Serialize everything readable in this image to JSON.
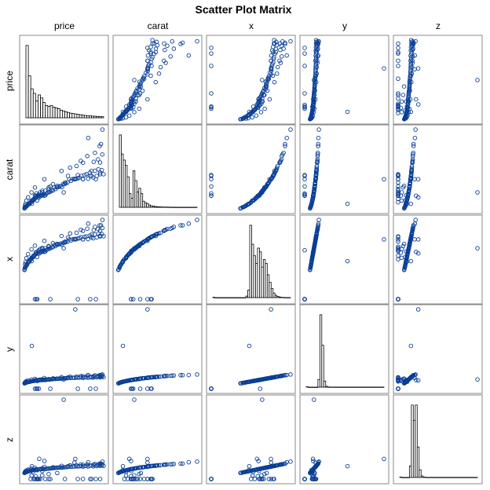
{
  "chart_data": {
    "type": "scatter",
    "title": "Scatter Plot Matrix",
    "variables": [
      "price",
      "carat",
      "x",
      "y",
      "z"
    ],
    "ranges": {
      "price": [
        326,
        18823
      ],
      "carat": [
        0.2,
        5.01
      ],
      "x": [
        0,
        10.74
      ],
      "y": [
        0,
        58.9
      ],
      "z": [
        0,
        31.8
      ]
    },
    "histograms": {
      "price": [
        0.95,
        0.55,
        0.38,
        0.32,
        0.22,
        0.3,
        0.26,
        0.2,
        0.16,
        0.15,
        0.16,
        0.14,
        0.13,
        0.12,
        0.1,
        0.09,
        0.08,
        0.07,
        0.06,
        0.055,
        0.05,
        0.045,
        0.04,
        0.035,
        0.03,
        0.028,
        0.025,
        0.022,
        0.02,
        0.018,
        0.016,
        0.014
      ],
      "carat": [
        0.95,
        0.7,
        0.62,
        0.55,
        0.4,
        0.18,
        0.12,
        0.48,
        0.35,
        0.2,
        0.25,
        0.18,
        0.08,
        0.06,
        0.05,
        0.03,
        0.02,
        0.015,
        0.01,
        0.008,
        0.006,
        0.005,
        0.004,
        0.003,
        0.003,
        0.002,
        0.002,
        0.002,
        0.001,
        0.001,
        0.001,
        0.001,
        0.001,
        0.001,
        0.001,
        0.001,
        0.001,
        0.001,
        0.001,
        0.001
      ],
      "x": [
        0.005,
        0,
        0,
        0,
        0,
        0,
        0,
        0,
        0,
        0,
        0,
        0,
        0,
        0,
        0,
        0,
        0,
        0.02,
        0.1,
        0.95,
        0.7,
        0.55,
        0.45,
        0.65,
        0.6,
        0.4,
        0.5,
        0.45,
        0.3,
        0.2,
        0.12,
        0.06,
        0.03,
        0.015,
        0.008,
        0.004,
        0.002,
        0.001,
        0.001,
        0.001
      ],
      "y": [
        0.005,
        0,
        0,
        0,
        0,
        0,
        0.1,
        0.95,
        0.55,
        0.08,
        0.01,
        0.002,
        0.001,
        0.001,
        0.001,
        0.001,
        0.001,
        0.001,
        0.001,
        0.001,
        0.001,
        0.001,
        0.001,
        0.001,
        0.001,
        0.001,
        0.001,
        0.001,
        0.001,
        0.001,
        0.001,
        0.001,
        0.001,
        0.001,
        0.001,
        0.001,
        0.001,
        0.001,
        0.001,
        0.001
      ],
      "z": [
        0.005,
        0,
        0,
        0,
        0,
        0.15,
        0.95,
        0.75,
        0.95,
        0.4,
        0.1,
        0.02,
        0.005,
        0.002,
        0.001,
        0.001,
        0.001,
        0.001,
        0.001,
        0.001,
        0.001,
        0.001,
        0.001,
        0.001,
        0.001,
        0.001,
        0.001,
        0.001,
        0.001,
        0.001,
        0.001,
        0.001,
        0.001,
        0.001,
        0.001,
        0.001,
        0.001,
        0.001,
        0.001,
        0.001
      ]
    },
    "points": [
      [
        357,
        0.23,
        3.95,
        3.98,
        2.43
      ],
      [
        400,
        0.25,
        4.05,
        4.07,
        2.5
      ],
      [
        450,
        0.3,
        4.25,
        4.28,
        2.63
      ],
      [
        520,
        0.3,
        4.3,
        4.32,
        2.66
      ],
      [
        600,
        0.31,
        4.35,
        4.37,
        2.69
      ],
      [
        700,
        0.33,
        4.45,
        4.47,
        2.75
      ],
      [
        800,
        0.35,
        4.55,
        4.58,
        2.81
      ],
      [
        900,
        0.38,
        4.65,
        4.68,
        2.88
      ],
      [
        1000,
        0.41,
        4.75,
        4.78,
        2.94
      ],
      [
        1150,
        0.45,
        4.9,
        4.93,
        3.03
      ],
      [
        1300,
        0.5,
        5.05,
        5.08,
        3.12
      ],
      [
        1500,
        0.52,
        5.15,
        5.18,
        3.18
      ],
      [
        1700,
        0.56,
        5.3,
        5.33,
        3.27
      ],
      [
        1900,
        0.6,
        5.4,
        5.43,
        3.33
      ],
      [
        2100,
        0.7,
        5.65,
        5.68,
        3.49
      ],
      [
        2300,
        0.72,
        5.72,
        5.75,
        3.53
      ],
      [
        2500,
        0.75,
        5.8,
        5.83,
        3.58
      ],
      [
        2700,
        0.8,
        5.95,
        5.98,
        3.67
      ],
      [
        2900,
        0.85,
        6.05,
        6.08,
        3.73
      ],
      [
        3100,
        0.9,
        6.15,
        6.18,
        3.8
      ],
      [
        3300,
        0.71,
        5.7,
        5.73,
        3.52
      ],
      [
        3500,
        0.9,
        6.18,
        6.2,
        3.81
      ],
      [
        3800,
        1.0,
        6.4,
        6.43,
        3.95
      ],
      [
        4000,
        1.01,
        6.42,
        6.45,
        3.96
      ],
      [
        4300,
        1.0,
        6.38,
        6.41,
        3.94
      ],
      [
        4600,
        1.05,
        6.5,
        6.53,
        4.02
      ],
      [
        4900,
        1.1,
        6.6,
        6.63,
        4.08
      ],
      [
        5200,
        1.02,
        6.45,
        6.48,
        3.98
      ],
      [
        5500,
        1.12,
        6.65,
        6.68,
        4.11
      ],
      [
        5800,
        1.2,
        6.8,
        6.83,
        4.2
      ],
      [
        6100,
        1.21,
        6.82,
        6.85,
        4.21
      ],
      [
        6400,
        1.25,
        6.9,
        6.93,
        4.26
      ],
      [
        6700,
        1.3,
        7.0,
        7.03,
        4.32
      ],
      [
        7000,
        1.32,
        7.05,
        7.08,
        4.35
      ],
      [
        7300,
        1.5,
        7.35,
        7.38,
        4.54
      ],
      [
        7600,
        1.4,
        7.2,
        7.23,
        4.45
      ],
      [
        7900,
        1.51,
        7.38,
        7.41,
        4.56
      ],
      [
        8200,
        1.52,
        7.4,
        7.43,
        4.57
      ],
      [
        8500,
        1.55,
        7.45,
        7.48,
        4.6
      ],
      [
        8800,
        1.6,
        7.52,
        7.55,
        4.64
      ],
      [
        9100,
        1.52,
        7.38,
        7.41,
        4.56
      ],
      [
        9400,
        1.7,
        7.65,
        7.68,
        4.72
      ],
      [
        9700,
        1.71,
        7.66,
        7.69,
        4.73
      ],
      [
        10000,
        1.75,
        7.72,
        7.75,
        4.76
      ],
      [
        10400,
        1.8,
        7.8,
        7.83,
        4.81
      ],
      [
        10800,
        2.0,
        8.1,
        8.13,
        5.0
      ],
      [
        11200,
        1.9,
        7.95,
        7.98,
        4.9
      ],
      [
        11600,
        2.01,
        8.12,
        8.15,
        5.01
      ],
      [
        12000,
        2.02,
        8.15,
        8.18,
        5.03
      ],
      [
        12400,
        2.03,
        8.16,
        8.19,
        5.04
      ],
      [
        12800,
        2.05,
        8.2,
        8.23,
        5.06
      ],
      [
        13200,
        2.1,
        8.28,
        8.31,
        5.11
      ],
      [
        13600,
        2.2,
        8.4,
        8.43,
        5.18
      ],
      [
        14000,
        2.01,
        8.1,
        8.13,
        5.0
      ],
      [
        14400,
        2.25,
        8.45,
        8.48,
        5.21
      ],
      [
        14800,
        2.3,
        8.5,
        8.53,
        5.24
      ],
      [
        15200,
        2.03,
        8.13,
        8.16,
        5.02
      ],
      [
        15600,
        2.4,
        8.62,
        8.65,
        5.32
      ],
      [
        16000,
        2.5,
        8.75,
        8.78,
        5.4
      ],
      [
        16400,
        2.1,
        8.25,
        8.28,
        5.09
      ],
      [
        16800,
        2.51,
        8.76,
        8.79,
        5.41
      ],
      [
        17200,
        2.2,
        8.38,
        8.41,
        5.17
      ],
      [
        17600,
        2.6,
        8.85,
        8.88,
        5.46
      ],
      [
        18000,
        2.4,
        8.6,
        8.63,
        5.31
      ],
      [
        18400,
        2.55,
        8.8,
        8.83,
        5.43
      ],
      [
        18800,
        2.3,
        8.52,
        8.55,
        5.25
      ],
      [
        1200,
        0.9,
        6.1,
        6.13,
        3.76
      ],
      [
        2000,
        1.2,
        6.75,
        6.78,
        4.17
      ],
      [
        2800,
        1.5,
        7.25,
        7.28,
        4.48
      ],
      [
        5000,
        2.0,
        7.9,
        7.93,
        4.88
      ],
      [
        9000,
        2.5,
        8.55,
        8.58,
        5.28
      ],
      [
        600,
        0.5,
        5.0,
        5.03,
        3.09
      ],
      [
        800,
        0.7,
        5.55,
        5.58,
        3.43
      ],
      [
        18000,
        3.01,
        9.3,
        9.33,
        5.73
      ],
      [
        16500,
        3.05,
        9.35,
        9.38,
        5.76
      ],
      [
        12500,
        2.8,
        9.0,
        9.03,
        5.55
      ],
      [
        18500,
        3.5,
        9.65,
        9.68,
        5.95
      ],
      [
        17900,
        4.01,
        10.0,
        10.03,
        6.17
      ],
      [
        18200,
        4.13,
        10.0,
        10.06,
        6.18
      ],
      [
        15223,
        4.5,
        10.23,
        10.16,
        6.72
      ],
      [
        18531,
        5.01,
        10.74,
        10.54,
        6.98
      ],
      [
        16800,
        3.6,
        9.8,
        9.83,
        6.04
      ],
      [
        17500,
        3.2,
        9.5,
        9.53,
        5.86
      ],
      [
        14000,
        3.0,
        9.25,
        9.28,
        5.7
      ],
      [
        11000,
        2.7,
        8.9,
        8.93,
        5.49
      ],
      [
        13500,
        3.11,
        9.4,
        9.43,
        5.79
      ],
      [
        15000,
        3.4,
        9.55,
        9.58,
        5.88
      ],
      [
        10500,
        2.2,
        8.35,
        8.38,
        5.15
      ],
      [
        3000,
        1.0,
        6.35,
        6.38,
        3.92
      ],
      [
        4500,
        1.3,
        6.95,
        6.98,
        4.29
      ],
      [
        7000,
        1.7,
        7.6,
        7.63,
        4.69
      ],
      [
        500,
        0.4,
        4.7,
        4.73,
        2.9
      ],
      [
        3345,
        1.0,
        0,
        0,
        0
      ],
      [
        3142,
        1.14,
        0,
        0,
        0
      ],
      [
        6381,
        1.56,
        0,
        0,
        0
      ],
      [
        12800,
        2.25,
        0,
        0,
        0
      ],
      [
        15686,
        2.2,
        0,
        0,
        0
      ],
      [
        17000,
        2.0,
        0,
        0,
        0
      ],
      [
        2800,
        1.01,
        0,
        0,
        0
      ],
      [
        3696,
        1.07,
        6.62,
        0,
        0
      ],
      [
        12210,
        2.0,
        8.09,
        58.9,
        8.06
      ],
      [
        2075,
        0.51,
        5.15,
        31.8,
        5.12
      ],
      [
        3500,
        1.0,
        6.5,
        6.47,
        0
      ],
      [
        4000,
        1.2,
        6.8,
        6.78,
        0
      ],
      [
        5200,
        1.3,
        6.9,
        6.88,
        0
      ],
      [
        6000,
        1.4,
        7.1,
        7.08,
        0
      ],
      [
        9800,
        1.8,
        7.8,
        7.78,
        0
      ],
      [
        14000,
        2.0,
        8.1,
        8.08,
        0
      ],
      [
        16000,
        2.2,
        8.4,
        8.38,
        0
      ],
      [
        18000,
        2.3,
        8.5,
        8.48,
        0
      ],
      [
        2500,
        0.8,
        5.9,
        5.88,
        0
      ],
      [
        1800,
        0.6,
        5.4,
        5.38,
        0
      ],
      [
        3000,
        1.0,
        6.3,
        6.28,
        1.1
      ],
      [
        4500,
        1.2,
        6.8,
        6.78,
        1.5
      ],
      [
        2000,
        0.7,
        5.6,
        5.58,
        1.4
      ],
      [
        6000,
        1.5,
        7.2,
        7.18,
        2.0
      ],
      [
        8000,
        1.6,
        7.5,
        7.48,
        2.4
      ],
      [
        2400,
        0.71,
        5.7,
        5.68,
        2.8
      ],
      [
        1500,
        0.5,
        5.1,
        5.08,
        3.6
      ],
      [
        5000,
        1.0,
        6.4,
        6.38,
        7.2
      ],
      [
        3800,
        0.9,
        6.2,
        6.18,
        8.1
      ],
      [
        12000,
        2.0,
        8.1,
        8.08,
        6.6
      ],
      [
        9500,
        1.2,
        6.9,
        6.88,
        31.8
      ],
      [
        4500,
        1.02,
        6.45,
        6.43,
        3.2
      ]
    ]
  }
}
